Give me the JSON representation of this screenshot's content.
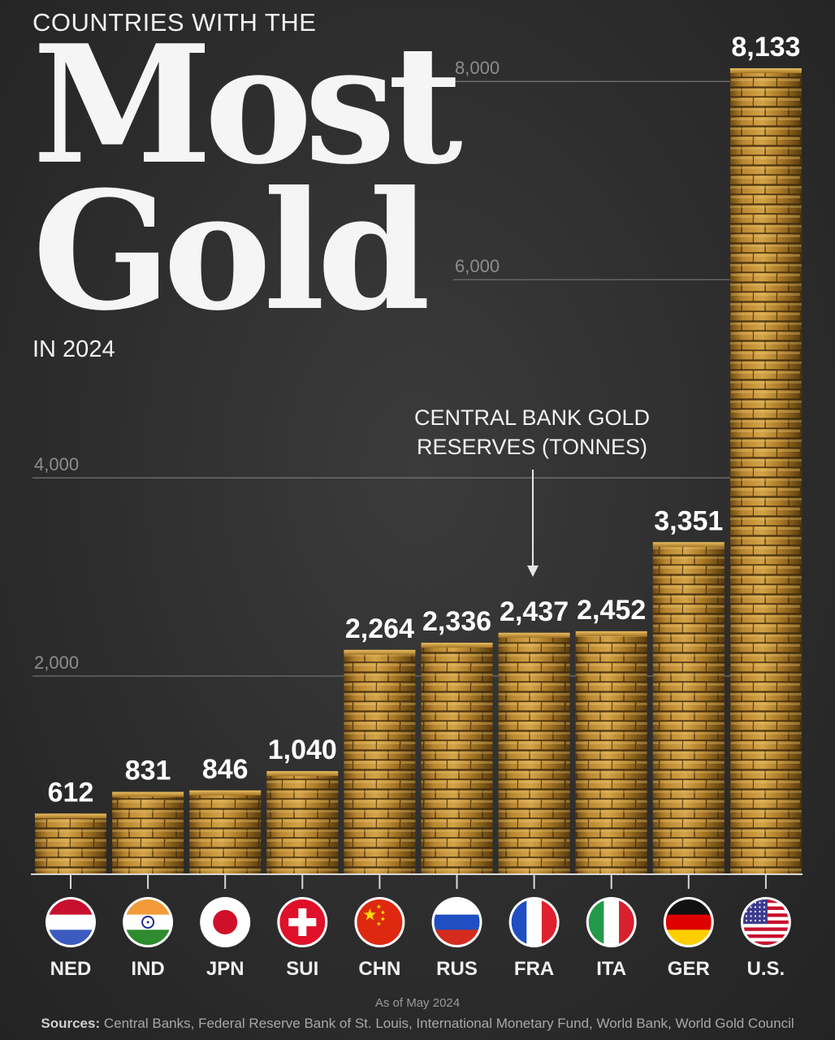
{
  "header": {
    "kicker": "COUNTRIES WITH THE",
    "title_line1": "Most",
    "title_line2": "Gold",
    "subtitle": "IN 2024"
  },
  "callout": {
    "line1": "CENTRAL BANK GOLD",
    "line2": "RESERVES (TONNES)"
  },
  "footer": {
    "as_of": "As of May 2024",
    "sources_label": "Sources:",
    "sources_text": "Central Banks, Federal Reserve Bank of St. Louis, International Monetary Fund, World Bank, World Gold Council"
  },
  "colors": {
    "gold_light": "#d9a94a",
    "gold_mid": "#a97826",
    "gold_dark": "#5e3f10",
    "background": "#2e2e2e",
    "gridline": "#777777"
  },
  "chart_data": {
    "type": "bar",
    "title": "Most Gold",
    "ylabel": "",
    "ylim": [
      0,
      8133
    ],
    "yticks": [
      2000,
      4000,
      6000,
      8000
    ],
    "ytick_labels": [
      "2,000",
      "4,000",
      "6,000",
      "8,000"
    ],
    "grid": true,
    "categories": [
      "NED",
      "IND",
      "JPN",
      "SUI",
      "CHN",
      "RUS",
      "FRA",
      "ITA",
      "GER",
      "U.S."
    ],
    "values": [
      612,
      831,
      846,
      1040,
      2264,
      2336,
      2437,
      2452,
      3351,
      8133
    ],
    "value_labels": [
      "612",
      "831",
      "846",
      "1,040",
      "2,264",
      "2,336",
      "2,437",
      "2,452",
      "3,351",
      "8,133"
    ],
    "flags": [
      "netherlands-flag-icon",
      "india-flag-icon",
      "japan-flag-icon",
      "switzerland-flag-icon",
      "china-flag-icon",
      "russia-flag-icon",
      "france-flag-icon",
      "italy-flag-icon",
      "germany-flag-icon",
      "usa-flag-icon"
    ]
  }
}
